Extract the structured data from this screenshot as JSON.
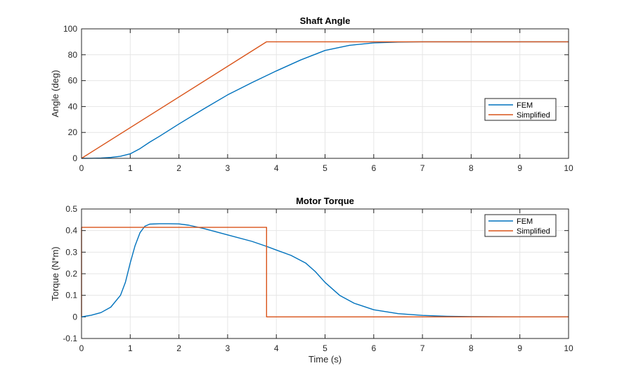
{
  "chart_data": [
    {
      "type": "line",
      "title": "Shaft Angle",
      "xlabel": "",
      "ylabel": "Angle (deg)",
      "xlim": [
        0,
        10
      ],
      "ylim": [
        0,
        100
      ],
      "xticks": [
        "0",
        "1",
        "2",
        "3",
        "4",
        "5",
        "6",
        "7",
        "8",
        "9",
        "10"
      ],
      "yticks": [
        "0",
        "20",
        "40",
        "60",
        "80",
        "100"
      ],
      "grid": true,
      "legend_position": "right",
      "series": [
        {
          "name": "FEM",
          "color": "#0072BD",
          "x": [
            0,
            0.2,
            0.4,
            0.6,
            0.8,
            1.0,
            1.2,
            1.4,
            1.6,
            2.0,
            2.5,
            3.0,
            3.5,
            4.0,
            4.5,
            5.0,
            5.5,
            6.0,
            6.5,
            7.0,
            8.0,
            10.0
          ],
          "y": [
            0,
            0.05,
            0.2,
            0.7,
            1.6,
            3.5,
            7.5,
            12.5,
            17,
            26.5,
            38,
            49,
            58.5,
            67.5,
            76,
            83.3,
            87.3,
            89.2,
            89.8,
            90,
            90,
            90
          ]
        },
        {
          "name": "Simplified",
          "color": "#D95319",
          "x": [
            0,
            3.8,
            10
          ],
          "y": [
            0,
            90,
            90
          ]
        }
      ]
    },
    {
      "type": "line",
      "title": "Motor Torque",
      "xlabel": "Time (s)",
      "ylabel": "Torque (N*m)",
      "xlim": [
        0,
        10
      ],
      "ylim": [
        -0.1,
        0.5
      ],
      "xticks": [
        "0",
        "1",
        "2",
        "3",
        "4",
        "5",
        "6",
        "7",
        "8",
        "9",
        "10"
      ],
      "yticks": [
        "-0.1",
        "0",
        "0.1",
        "0.2",
        "0.3",
        "0.4",
        "0.5"
      ],
      "grid": true,
      "legend_position": "top-right",
      "series": [
        {
          "name": "FEM",
          "color": "#0072BD",
          "x": [
            0,
            0.2,
            0.4,
            0.6,
            0.8,
            0.9,
            1.0,
            1.1,
            1.2,
            1.3,
            1.4,
            1.6,
            1.8,
            2.0,
            2.2,
            2.5,
            3.0,
            3.5,
            3.8,
            4.0,
            4.3,
            4.6,
            4.8,
            5.0,
            5.3,
            5.6,
            6.0,
            6.5,
            7.0,
            7.5,
            8.0,
            9.0,
            10.0
          ],
          "y": [
            0,
            0.008,
            0.02,
            0.045,
            0.1,
            0.16,
            0.25,
            0.33,
            0.39,
            0.42,
            0.43,
            0.432,
            0.432,
            0.431,
            0.425,
            0.41,
            0.38,
            0.35,
            0.327,
            0.31,
            0.285,
            0.25,
            0.21,
            0.16,
            0.1,
            0.063,
            0.033,
            0.015,
            0.007,
            0.003,
            0.001,
            0,
            0
          ]
        },
        {
          "name": "Simplified",
          "color": "#D95319",
          "x": [
            0,
            0,
            3.8,
            3.8,
            10
          ],
          "y": [
            0,
            0.415,
            0.415,
            0,
            0
          ]
        }
      ]
    }
  ]
}
